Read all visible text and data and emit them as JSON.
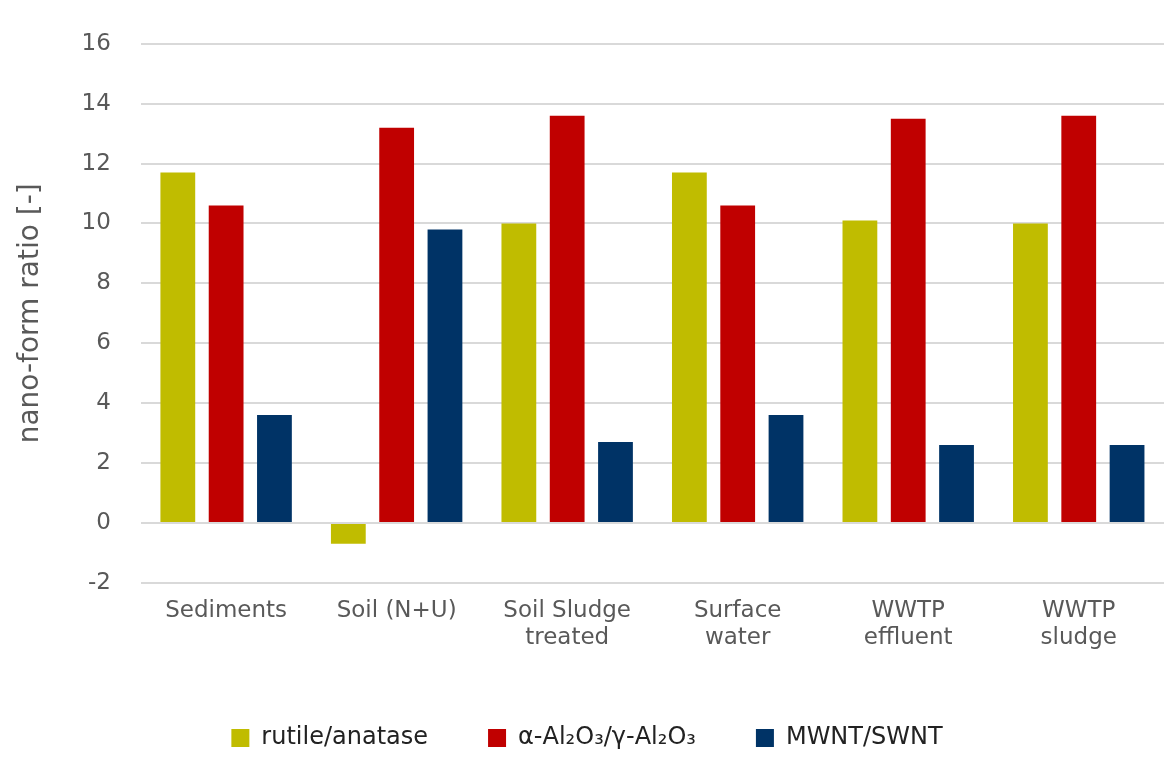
{
  "chart_data": {
    "type": "bar",
    "ylabel": "nano-form ratio [-]",
    "categories": [
      "Sediments",
      "Soil (N+U)",
      "Soil Sludge\ntreated",
      "Surface\nwater",
      "WWTP\neffluent",
      "WWTP\nsludge"
    ],
    "series": [
      {
        "name": "rutile/anatase",
        "color": "#c0bc00",
        "values": [
          11.7,
          -0.7,
          10.0,
          11.7,
          10.1,
          10.0
        ]
      },
      {
        "name": "α-Al₂O₃/γ-Al₂O₃",
        "color": "#c00000",
        "values": [
          10.6,
          13.2,
          13.6,
          10.6,
          13.5,
          13.6
        ]
      },
      {
        "name": "MWNT/SWNT",
        "color": "#003366",
        "values": [
          3.6,
          9.8,
          2.7,
          3.6,
          2.6,
          2.6
        ]
      }
    ],
    "ylim": [
      -2,
      16
    ],
    "yticks": [
      -2,
      0,
      2,
      4,
      6,
      8,
      10,
      12,
      14,
      16
    ],
    "grid": "y",
    "legend": "bottom"
  }
}
